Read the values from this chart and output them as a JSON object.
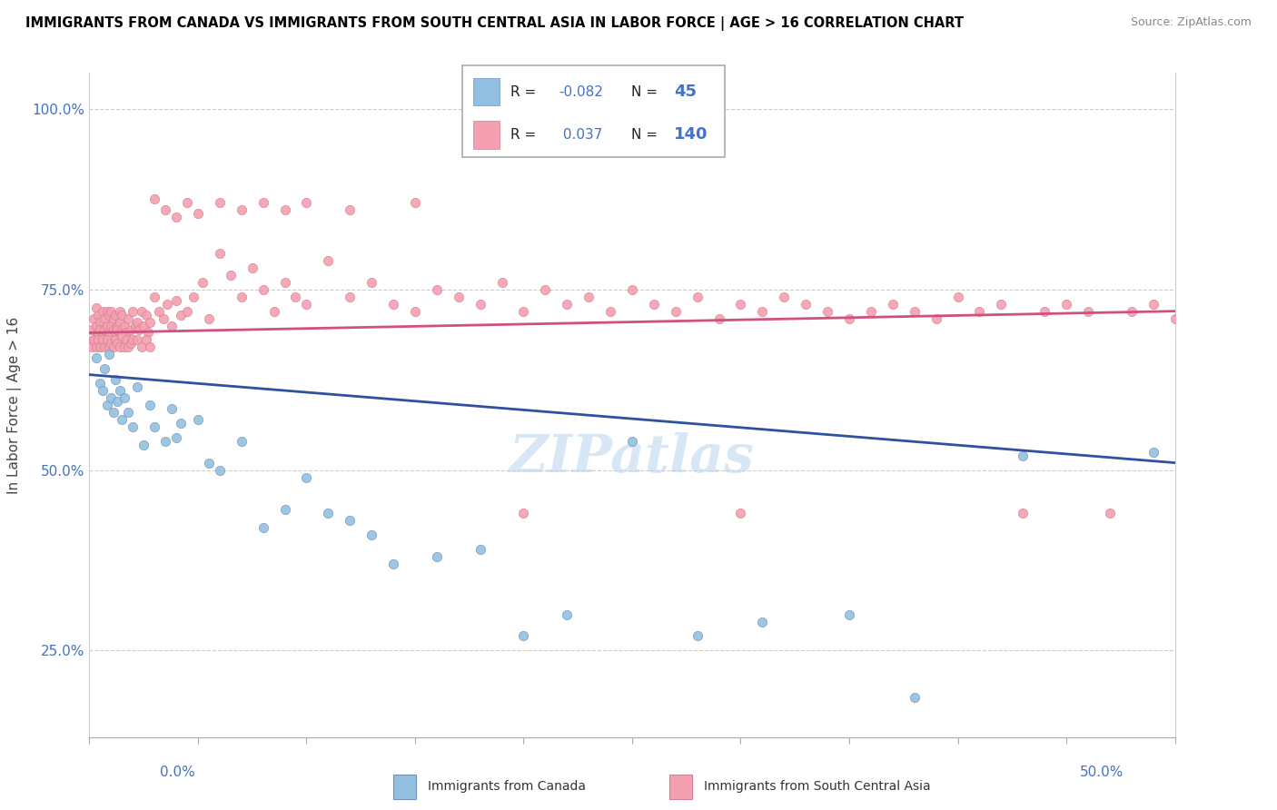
{
  "title": "IMMIGRANTS FROM CANADA VS IMMIGRANTS FROM SOUTH CENTRAL ASIA IN LABOR FORCE | AGE > 16 CORRELATION CHART",
  "source": "Source: ZipAtlas.com",
  "ylabel": "In Labor Force | Age > 16",
  "canada_R": -0.082,
  "canada_N": 45,
  "sca_R": 0.037,
  "sca_N": 140,
  "canada_color": "#92c0e0",
  "sca_color": "#f4a0b0",
  "trend_blue": "#3050a0",
  "trend_pink": "#d05080",
  "legend_label_canada": "Immigrants from Canada",
  "legend_label_sca": "Immigrants from South Central Asia",
  "canada_x": [
    0.003,
    0.005,
    0.006,
    0.007,
    0.008,
    0.009,
    0.01,
    0.011,
    0.012,
    0.013,
    0.014,
    0.015,
    0.016,
    0.018,
    0.02,
    0.022,
    0.025,
    0.028,
    0.03,
    0.035,
    0.038,
    0.04,
    0.042,
    0.05,
    0.055,
    0.06,
    0.07,
    0.08,
    0.09,
    0.1,
    0.11,
    0.12,
    0.13,
    0.14,
    0.16,
    0.18,
    0.2,
    0.22,
    0.25,
    0.28,
    0.31,
    0.35,
    0.38,
    0.43,
    0.49
  ],
  "canada_y": [
    0.655,
    0.62,
    0.61,
    0.64,
    0.59,
    0.66,
    0.6,
    0.58,
    0.625,
    0.595,
    0.61,
    0.57,
    0.6,
    0.58,
    0.56,
    0.615,
    0.535,
    0.59,
    0.56,
    0.54,
    0.585,
    0.545,
    0.565,
    0.57,
    0.51,
    0.5,
    0.54,
    0.42,
    0.445,
    0.49,
    0.44,
    0.43,
    0.41,
    0.37,
    0.38,
    0.39,
    0.27,
    0.3,
    0.54,
    0.27,
    0.29,
    0.3,
    0.185,
    0.52,
    0.525
  ],
  "sca_x": [
    0.001,
    0.002,
    0.002,
    0.003,
    0.003,
    0.004,
    0.004,
    0.005,
    0.005,
    0.006,
    0.006,
    0.007,
    0.007,
    0.008,
    0.008,
    0.009,
    0.009,
    0.01,
    0.01,
    0.011,
    0.011,
    0.012,
    0.012,
    0.013,
    0.013,
    0.014,
    0.014,
    0.015,
    0.015,
    0.016,
    0.017,
    0.018,
    0.019,
    0.02,
    0.021,
    0.022,
    0.023,
    0.024,
    0.025,
    0.026,
    0.027,
    0.028,
    0.03,
    0.032,
    0.034,
    0.036,
    0.038,
    0.04,
    0.042,
    0.045,
    0.048,
    0.052,
    0.055,
    0.06,
    0.065,
    0.07,
    0.075,
    0.08,
    0.085,
    0.09,
    0.095,
    0.1,
    0.11,
    0.12,
    0.13,
    0.14,
    0.15,
    0.16,
    0.17,
    0.18,
    0.19,
    0.2,
    0.21,
    0.22,
    0.23,
    0.24,
    0.25,
    0.26,
    0.27,
    0.28,
    0.29,
    0.3,
    0.31,
    0.32,
    0.33,
    0.34,
    0.35,
    0.36,
    0.37,
    0.38,
    0.39,
    0.4,
    0.41,
    0.42,
    0.43,
    0.44,
    0.45,
    0.46,
    0.47,
    0.48,
    0.49,
    0.5,
    0.001,
    0.002,
    0.003,
    0.004,
    0.005,
    0.006,
    0.007,
    0.008,
    0.009,
    0.01,
    0.011,
    0.012,
    0.013,
    0.014,
    0.015,
    0.016,
    0.017,
    0.018,
    0.019,
    0.02,
    0.022,
    0.024,
    0.026,
    0.028,
    0.03,
    0.035,
    0.04,
    0.045,
    0.05,
    0.06,
    0.07,
    0.08,
    0.09,
    0.1,
    0.12,
    0.15,
    0.2,
    0.3
  ],
  "sca_y": [
    0.695,
    0.71,
    0.68,
    0.725,
    0.7,
    0.69,
    0.715,
    0.705,
    0.695,
    0.72,
    0.685,
    0.71,
    0.695,
    0.72,
    0.7,
    0.69,
    0.715,
    0.7,
    0.72,
    0.695,
    0.71,
    0.69,
    0.715,
    0.7,
    0.695,
    0.72,
    0.705,
    0.695,
    0.715,
    0.7,
    0.69,
    0.71,
    0.695,
    0.72,
    0.7,
    0.705,
    0.695,
    0.72,
    0.7,
    0.715,
    0.69,
    0.705,
    0.74,
    0.72,
    0.71,
    0.73,
    0.7,
    0.735,
    0.715,
    0.72,
    0.74,
    0.76,
    0.71,
    0.8,
    0.77,
    0.74,
    0.78,
    0.75,
    0.72,
    0.76,
    0.74,
    0.73,
    0.79,
    0.74,
    0.76,
    0.73,
    0.72,
    0.75,
    0.74,
    0.73,
    0.76,
    0.72,
    0.75,
    0.73,
    0.74,
    0.72,
    0.75,
    0.73,
    0.72,
    0.74,
    0.71,
    0.73,
    0.72,
    0.74,
    0.73,
    0.72,
    0.71,
    0.72,
    0.73,
    0.72,
    0.71,
    0.74,
    0.72,
    0.73,
    0.44,
    0.72,
    0.73,
    0.72,
    0.44,
    0.72,
    0.73,
    0.71,
    0.67,
    0.68,
    0.67,
    0.68,
    0.67,
    0.68,
    0.67,
    0.68,
    0.67,
    0.675,
    0.67,
    0.68,
    0.675,
    0.67,
    0.685,
    0.67,
    0.68,
    0.67,
    0.675,
    0.68,
    0.68,
    0.67,
    0.68,
    0.67,
    0.875,
    0.86,
    0.85,
    0.87,
    0.855,
    0.87,
    0.86,
    0.87,
    0.86,
    0.87,
    0.86,
    0.87,
    0.44,
    0.44
  ],
  "xlim": [
    0.0,
    0.5
  ],
  "ylim": [
    0.13,
    1.05
  ],
  "yticks": [
    0.25,
    0.5,
    0.75,
    1.0
  ],
  "ytick_labels": [
    "25.0%",
    "50.0%",
    "75.0%",
    "100.0%"
  ]
}
